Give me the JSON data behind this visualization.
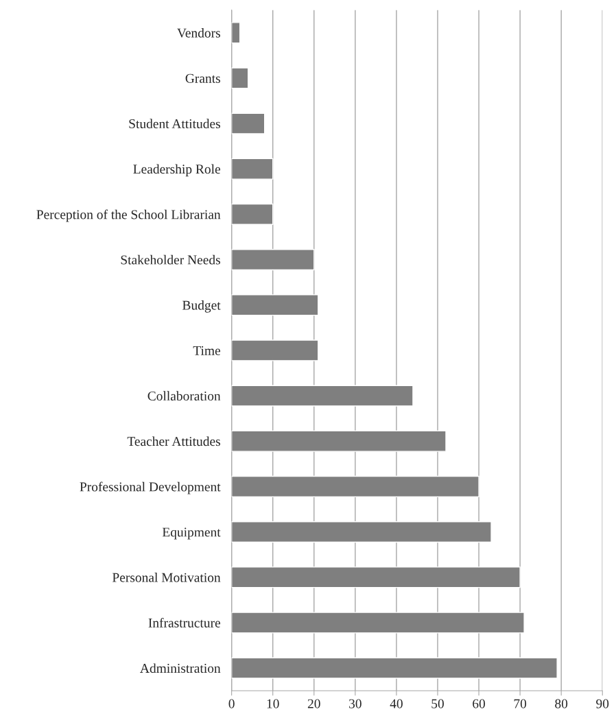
{
  "chart_data": {
    "type": "bar",
    "orientation": "horizontal",
    "categories": [
      "Vendors",
      "Grants",
      "Student Attitudes",
      "Leadership Role",
      "Perception of the School Librarian",
      "Stakeholder Needs",
      "Budget",
      "Time",
      "Collaboration",
      "Teacher Attitudes",
      "Professional Development",
      "Equipment",
      "Personal Motivation",
      "Infrastructure",
      "Administration"
    ],
    "values": [
      2,
      4,
      8,
      10,
      10,
      20,
      21,
      21,
      44,
      52,
      60,
      63,
      70,
      71,
      79
    ],
    "color": "#7f7f7f",
    "xlim": [
      0,
      90
    ],
    "xticks": [
      0,
      10,
      20,
      30,
      40,
      50,
      60,
      70,
      80,
      90
    ],
    "grid": "x"
  }
}
